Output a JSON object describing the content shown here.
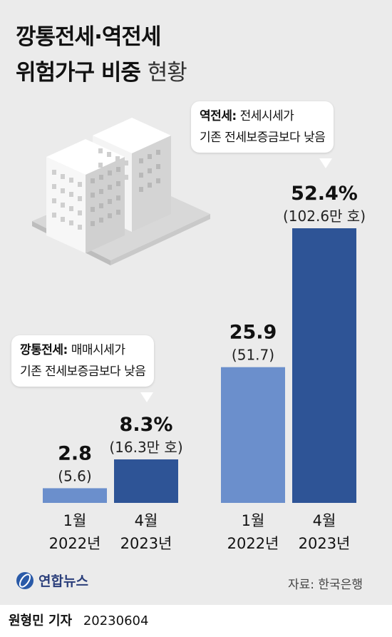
{
  "title_line1": "깡통전세·역전세",
  "title_line2_bold": "위험가구 비중",
  "title_line2_light": "현황",
  "bubble_left": {
    "term": "깡통전세:",
    "line1": "매매시세가",
    "line2": "기존 전세보증금보다 낮음"
  },
  "bubble_right": {
    "term": "역전세:",
    "line1": "전세시세가",
    "line2": "기존 전세보증금보다 낮음"
  },
  "source": "자료: 한국은행",
  "logo_text": "연합뉴스",
  "credit_name": "원형민 기자",
  "credit_date": "20230604",
  "colors": {
    "light_bar": "#6b8fcc",
    "dark_bar": "#2e5496",
    "background": "#ebebeb"
  },
  "chart_data": {
    "type": "bar",
    "groups": [
      "깡통전세",
      "역전세"
    ],
    "categories": [
      {
        "line1": "1월",
        "line2": "2022년"
      },
      {
        "line1": "4월",
        "line2": "2023년"
      },
      {
        "line1": "1월",
        "line2": "2022년"
      },
      {
        "line1": "4월",
        "line2": "2023년"
      }
    ],
    "values": [
      2.8,
      8.3,
      25.9,
      52.4
    ],
    "value_labels": [
      "2.8",
      "8.3%",
      "25.9",
      "52.4%"
    ],
    "sub_labels": [
      "(5.6)",
      "(16.3만 호)",
      "(51.7)",
      "(102.6만 호)"
    ],
    "unit": "%",
    "ylim": [
      0,
      52.4
    ]
  }
}
